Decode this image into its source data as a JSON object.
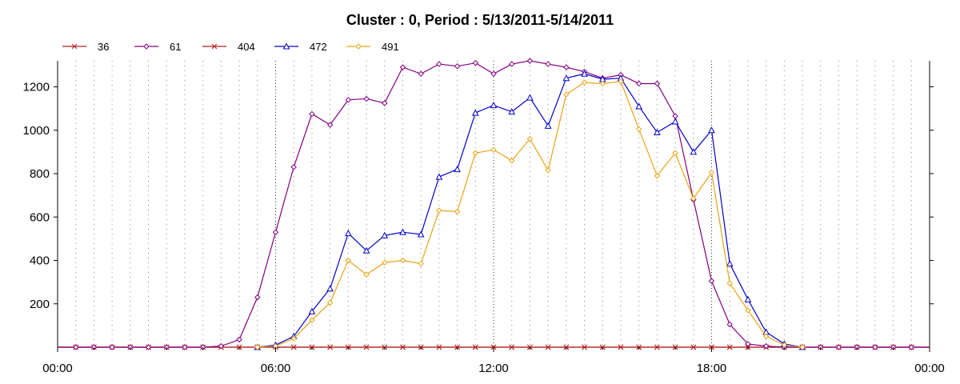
{
  "chart_data": {
    "type": "line",
    "title": "Cluster : 0, Period : 5/13/2011-5/14/2011",
    "xlabel": "",
    "ylabel": "",
    "x_range": [
      "00:00",
      "24:00"
    ],
    "ylim": [
      0,
      1320
    ],
    "x_tick_labels": [
      "00:00",
      "06:00",
      "12:00",
      "18:00",
      "00:00"
    ],
    "y_tick_labels": [
      "200",
      "400",
      "600",
      "800",
      "1000",
      "1200"
    ],
    "y_ticks": [
      200,
      400,
      600,
      800,
      1000,
      1200
    ],
    "grid": "vertical dotted, every 30 minutes",
    "legend_position": "top-left",
    "x": [
      "00:00",
      "00:30",
      "01:00",
      "01:30",
      "02:00",
      "02:30",
      "03:00",
      "03:30",
      "04:00",
      "04:30",
      "05:00",
      "05:30",
      "06:00",
      "06:30",
      "07:00",
      "07:30",
      "08:00",
      "08:30",
      "09:00",
      "09:30",
      "10:00",
      "10:30",
      "11:00",
      "11:30",
      "12:00",
      "12:30",
      "13:00",
      "13:30",
      "14:00",
      "14:30",
      "15:00",
      "15:30",
      "16:00",
      "16:30",
      "17:00",
      "17:30",
      "18:00",
      "18:30",
      "19:00",
      "19:30",
      "20:00",
      "20:30",
      "21:00",
      "21:30",
      "22:00",
      "22:30",
      "23:00",
      "23:30",
      "24:00"
    ],
    "series": [
      {
        "name": "36",
        "color": "#b22222",
        "marker": "x",
        "values": [
          0,
          0,
          0,
          0,
          0,
          0,
          0,
          0,
          0,
          0,
          0,
          0,
          0,
          0,
          0,
          0,
          0,
          0,
          0,
          0,
          0,
          0,
          0,
          0,
          0,
          0,
          0,
          0,
          0,
          0,
          0,
          0,
          0,
          0,
          0,
          0,
          0,
          0,
          0,
          0,
          0,
          0,
          0,
          0,
          0,
          0,
          0,
          0,
          0
        ]
      },
      {
        "name": "61",
        "color": "#800080",
        "marker": "diamond",
        "values": [
          0,
          0,
          0,
          0,
          0,
          0,
          0,
          0,
          0,
          0,
          0,
          0,
          0,
          0,
          0,
          0,
          0,
          0,
          0,
          0,
          0,
          0,
          0,
          0,
          0,
          0,
          0,
          0,
          0,
          0,
          0,
          0,
          0,
          0,
          0,
          0,
          0,
          0,
          0,
          0,
          0,
          0,
          0,
          0,
          0,
          0,
          0,
          0,
          0
        ]
      },
      {
        "name": "404",
        "color": "#b22222",
        "marker": "x",
        "values": [
          0,
          0,
          0,
          0,
          0,
          0,
          0,
          0,
          0,
          0,
          0,
          0,
          0,
          0,
          0,
          0,
          0,
          0,
          0,
          0,
          0,
          0,
          0,
          0,
          0,
          0,
          0,
          0,
          0,
          0,
          0,
          0,
          0,
          0,
          0,
          0,
          0,
          0,
          0,
          0,
          0,
          0,
          0,
          0,
          0,
          0,
          0,
          0,
          0
        ]
      },
      {
        "name": "472",
        "color": "#0000cc",
        "marker": "triangle",
        "values": [
          null,
          null,
          null,
          null,
          null,
          null,
          null,
          null,
          null,
          null,
          null,
          0,
          10,
          50,
          165,
          270,
          525,
          445,
          515,
          530,
          520,
          785,
          820,
          1080,
          1115,
          1085,
          1150,
          1020,
          1240,
          1260,
          1235,
          1240,
          1110,
          990,
          1040,
          900,
          1000,
          385,
          220,
          70,
          15,
          0,
          null,
          null,
          null,
          null,
          null,
          null,
          null
        ]
      },
      {
        "name": "491",
        "color": "#e8a317",
        "marker": "diamond",
        "values": [
          null,
          null,
          null,
          null,
          null,
          null,
          null,
          null,
          null,
          null,
          null,
          0,
          5,
          40,
          125,
          205,
          400,
          335,
          390,
          400,
          385,
          630,
          625,
          895,
          910,
          860,
          960,
          815,
          1165,
          1220,
          1215,
          1225,
          1005,
          790,
          895,
          685,
          805,
          295,
          170,
          50,
          10,
          0,
          null,
          null,
          null,
          null,
          null,
          null,
          null
        ]
      },
      {
        "name": "61",
        "color": "#800080",
        "marker": "diamond",
        "override_series_index": 1,
        "values": [
          0,
          0,
          0,
          0,
          0,
          0,
          0,
          0,
          0,
          5,
          35,
          230,
          530,
          830,
          1075,
          1025,
          1140,
          1145,
          1125,
          1290,
          1260,
          1305,
          1295,
          1310,
          1260,
          1305,
          1320,
          1305,
          1290,
          1270,
          1240,
          1255,
          1215,
          1215,
          1065,
          680,
          305,
          105,
          15,
          5,
          0,
          0,
          0,
          0,
          0,
          0,
          0,
          0,
          0
        ]
      }
    ]
  }
}
